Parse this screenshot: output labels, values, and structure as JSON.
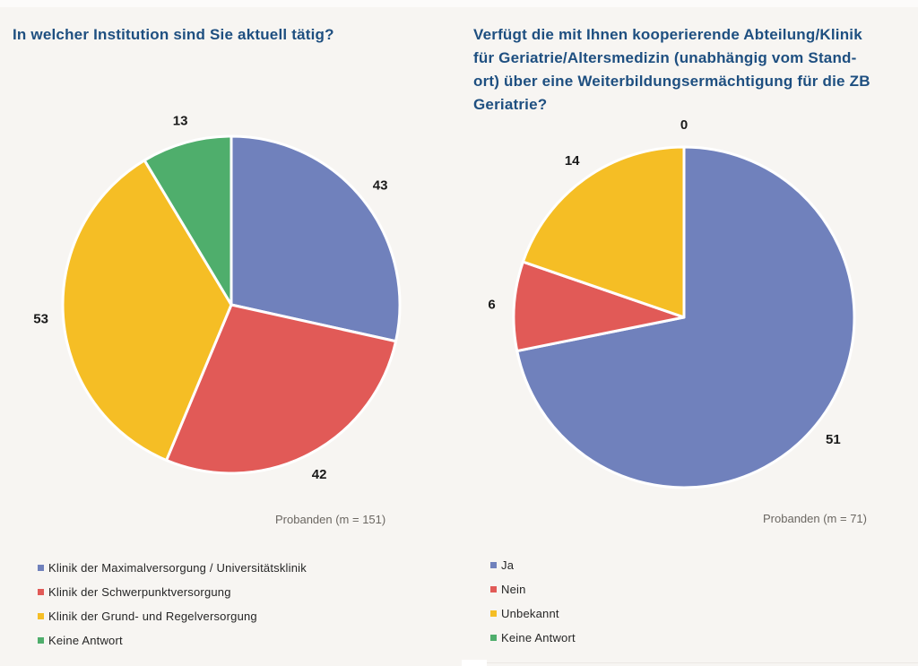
{
  "page": {
    "background_color": "#F7F5F2",
    "title_color": "#1E4F80",
    "caption_color": "#6B6762"
  },
  "palette": {
    "blue": "#7081BC",
    "red": "#E15A57",
    "yellow": "#F5BE25",
    "green": "#4FAE6C"
  },
  "chart_data": [
    {
      "type": "pie",
      "title": "In welcher Institution sind Sie aktuell tätig?",
      "categories": [
        "Klinik der Maximalversorgung / Universitätsklinik",
        "Klinik der Schwerpunktversorgung",
        "Klinik der Grund- und Regelversorgung",
        "Keine Antwort"
      ],
      "values": [
        43,
        42,
        53,
        13
      ],
      "total": 151,
      "colors": [
        "#7081BC",
        "#E15A57",
        "#F5BE25",
        "#4FAE6C"
      ],
      "caption": "Probanden (m = 151)",
      "start_angle": "top",
      "direction": "clockwise",
      "data_labels": "outside",
      "legend_position": "bottom-left"
    },
    {
      "type": "pie",
      "title": "Verfügt die mit Ihnen kooperierende Abteilung/Klinik für Geriatrie/Altersmedizin (unabhängig vom Standort) über eine Weiterbildungsermächtigung für die ZB Geriatrie?",
      "title_lines": [
        "Verfügt die mit Ihnen kooperierende Abteilung/Klinik",
        "für Geriatrie/Altersmedizin (unabhängig vom Stand-",
        "ort) über eine Weiterbildungsermächtigung für die ZB",
        "Geriatrie?"
      ],
      "categories": [
        "Ja",
        "Nein",
        "Unbekannt",
        "Keine Antwort"
      ],
      "values": [
        51,
        6,
        14,
        0
      ],
      "total": 71,
      "colors": [
        "#7081BC",
        "#E15A57",
        "#F5BE25",
        "#4FAE6C"
      ],
      "caption": "Probanden (m = 71)",
      "start_angle": "top",
      "direction": "clockwise",
      "data_labels": "outside",
      "legend_position": "bottom-left"
    }
  ]
}
